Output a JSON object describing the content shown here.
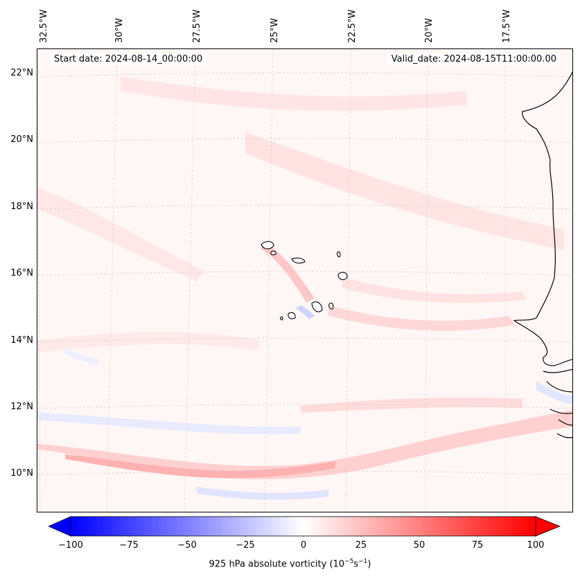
{
  "map": {
    "start_date": "Start date: 2024-08-14_00:00:00",
    "valid_date": "Valid_date: 2024-08-15T11:00:00.00",
    "longitude_labels": [
      "32.5°W",
      "30°W",
      "27.5°W",
      "25°W",
      "22.5°W",
      "20°W",
      "17.5°W"
    ],
    "latitude_labels": [
      "22°N",
      "20°N",
      "18°N",
      "16°N",
      "14°N",
      "12°N",
      "10°N"
    ],
    "variable": "925 hPa absolute vorticity",
    "units": "10^-5 s^-1"
  },
  "colorbar": {
    "min": -100,
    "max": 100,
    "tick_labels": [
      "−100",
      "−75",
      "−50",
      "−25",
      "0",
      "25",
      "50",
      "75",
      "100"
    ],
    "label_prefix": "925 hPa absolute vorticity (10",
    "label_exp1": "−5",
    "label_mid": "s",
    "label_exp2": "−1",
    "label_suffix": ")",
    "neg_color": "#0000ff",
    "pos_color": "#ff0000",
    "mid_color": "#ffffff"
  }
}
